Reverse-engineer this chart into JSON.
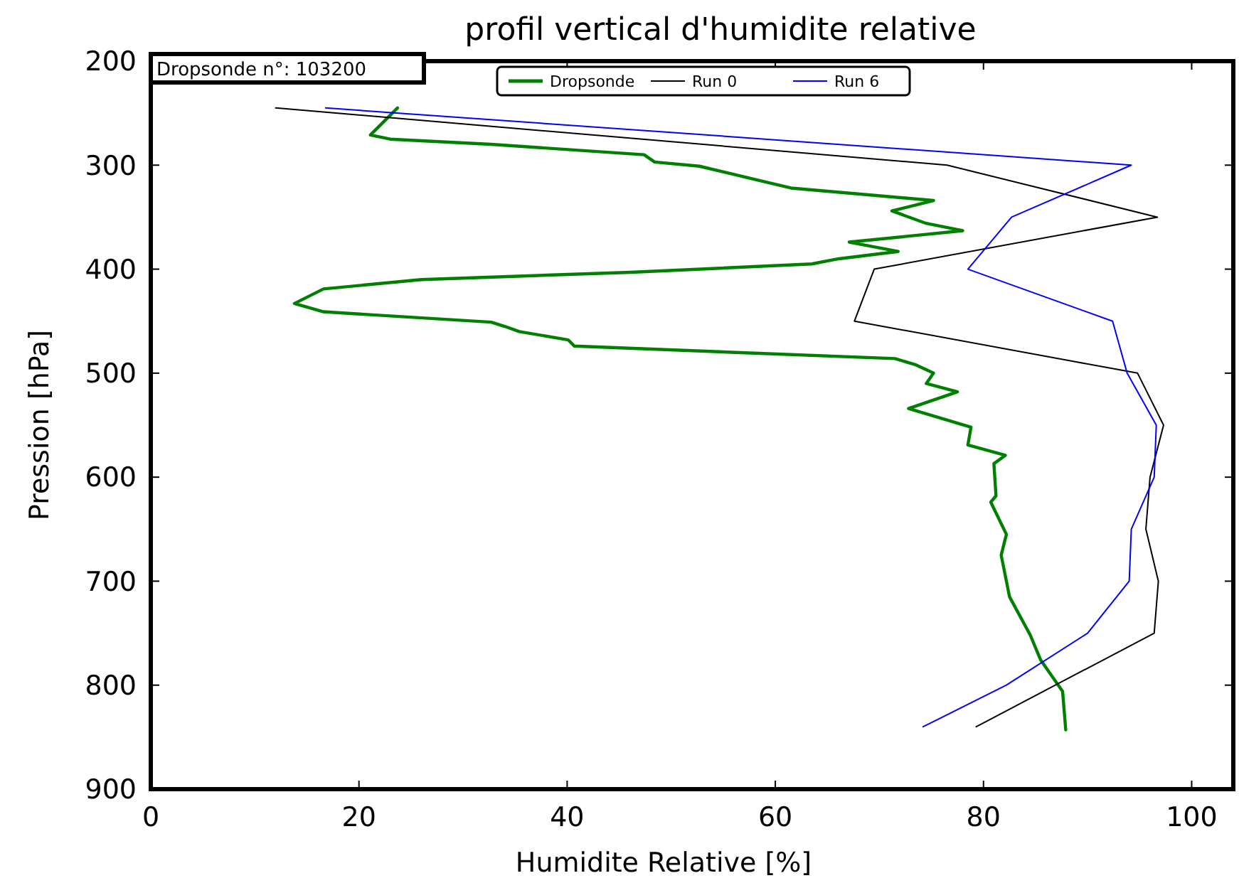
{
  "chart_data": {
    "type": "line",
    "title": "profil vertical d'humidite relative",
    "xlabel": "Humidite Relative [%]",
    "ylabel": "Pression [hPa]",
    "annotations": [
      "Dropsonde n°: 103200"
    ],
    "xlim": [
      0,
      104
    ],
    "xticks": [
      0,
      20,
      40,
      60,
      80,
      100
    ],
    "ylim": [
      900,
      200
    ],
    "yticks": [
      200,
      300,
      400,
      500,
      600,
      700,
      800,
      900
    ],
    "grid": false,
    "legend": "top",
    "marker": "none",
    "line_style": "solid",
    "series": [
      {
        "name": "Dropsonde",
        "color": "#008000",
        "x": [
          23.7,
          21.1,
          23.0,
          32.7,
          47.4,
          48.4,
          52.7,
          61.5,
          75.2,
          71.2,
          74.5,
          78.0,
          67.1,
          71.8,
          66.1,
          63.5,
          46.1,
          26.0,
          16.6,
          13.8,
          16.6,
          32.7,
          34.0,
          35.4,
          40.1,
          40.7,
          71.5,
          73.5,
          75.2,
          74.5,
          77.5,
          72.8,
          78.8,
          78.5,
          82.1,
          81.0,
          81.2,
          80.7,
          82.2,
          81.7,
          82.5,
          84.5,
          85.5,
          87.6,
          87.9
        ],
        "values": [
          245,
          271,
          275,
          280,
          290,
          297,
          301,
          322,
          334,
          344,
          356,
          363,
          374,
          383,
          390,
          395,
          403,
          410,
          419,
          433,
          441,
          451,
          455,
          460,
          468,
          474,
          486,
          492,
          500,
          510,
          518,
          534,
          552,
          569,
          579,
          587,
          618,
          624,
          655,
          675,
          715,
          752,
          776,
          806,
          843
        ]
      },
      {
        "name": "Run 0",
        "color": "#000000",
        "x": [
          12,
          76.5,
          96.7,
          69.5,
          67.6,
          94.8,
          97.3,
          96,
          95.6,
          96.8,
          96.4,
          79.3
        ],
        "values": [
          245,
          300,
          350,
          400,
          450,
          500,
          550,
          600,
          650,
          700,
          750,
          840
        ]
      },
      {
        "name": "Run 6",
        "color": "#0000ff",
        "x": [
          16.8,
          94.2,
          82.7,
          78.5,
          92.4,
          93.8,
          96.6,
          96.4,
          94.2,
          94.0,
          90.0,
          82.2,
          74.2
        ],
        "values": [
          245,
          300,
          350,
          400,
          450,
          500,
          550,
          600,
          650,
          700,
          750,
          800,
          840
        ]
      }
    ]
  }
}
